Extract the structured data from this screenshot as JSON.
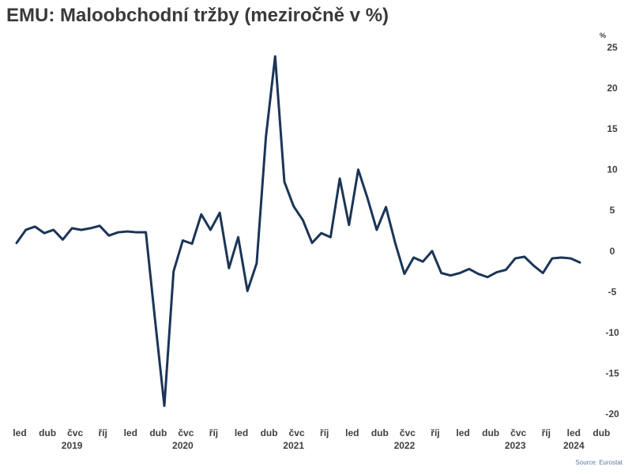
{
  "chart_data": {
    "type": "line",
    "title": "EMU: Maloobchodní tržby (meziročně v %)",
    "unit_label": "%",
    "source": "Source: Eurostat",
    "ylim": [
      -20,
      25
    ],
    "y_ticks": [
      "25",
      "20",
      "15",
      "10",
      "5",
      "0",
      "-5",
      "-10",
      "-15",
      "-20"
    ],
    "x_tick_labels": [
      "led",
      "dub",
      "čvc",
      "říj",
      "led",
      "dub",
      "čvc",
      "říj",
      "led",
      "dub",
      "čvc",
      "říj",
      "led",
      "dub",
      "čvc",
      "říj",
      "led",
      "dub",
      "čvc",
      "říj",
      "led",
      "dub"
    ],
    "year_labels": [
      "2019",
      "2020",
      "2021",
      "2022",
      "2023",
      "2024"
    ],
    "grid": false,
    "legend": "none",
    "color": "#1b3556",
    "series": [
      {
        "values": [
          1.0,
          2.6,
          3.0,
          2.2,
          2.6,
          1.4,
          2.8,
          2.6,
          2.8,
          3.1,
          1.9,
          2.3,
          2.4,
          2.3,
          2.3,
          -8.5,
          -19.0,
          -2.5,
          1.3,
          0.9,
          4.5,
          2.6,
          4.7,
          -2.1,
          1.7,
          -4.9,
          -1.5,
          14.0,
          23.9,
          8.5,
          5.5,
          3.8,
          1.0,
          2.2,
          1.7,
          8.9,
          3.2,
          10.0,
          6.5,
          2.6,
          5.4,
          1.0,
          -2.8,
          -0.8,
          -1.3,
          0.0,
          -2.7,
          -3.0,
          -2.7,
          -2.2,
          -2.8,
          -3.2,
          -2.6,
          -2.3,
          -0.9,
          -0.7,
          -1.8,
          -2.7,
          -0.9,
          -0.8,
          -0.9,
          -1.4
        ]
      }
    ]
  }
}
